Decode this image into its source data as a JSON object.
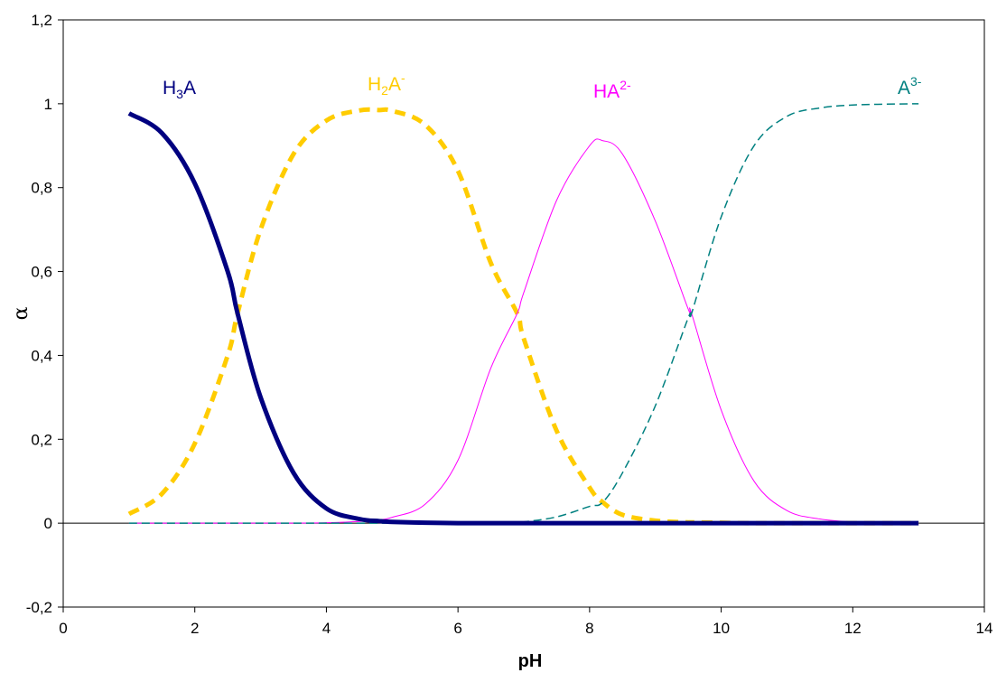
{
  "chart_data": {
    "type": "line",
    "xlabel": "pH",
    "ylabel": "α",
    "xlim": [
      0,
      14
    ],
    "ylim": [
      -0.2,
      1.2
    ],
    "x_ticks": [
      "0",
      "2",
      "4",
      "6",
      "8",
      "10",
      "12",
      "14"
    ],
    "y_ticks": [
      "-0,2",
      "0",
      "0,2",
      "0,4",
      "0,6",
      "0,8",
      "1",
      "1,2"
    ],
    "x": [
      1,
      1.5,
      2,
      2.5,
      2.65,
      3,
      3.5,
      4,
      4.5,
      4.8,
      5,
      5.5,
      6,
      6.5,
      6.9,
      7,
      7.5,
      8,
      8.2,
      8.5,
      9,
      9.5,
      9.55,
      10,
      10.5,
      11,
      11.5,
      12,
      12.5,
      13
    ],
    "series": [
      {
        "name": "H₃A",
        "label_parts": {
          "base": "H",
          "sub": "3",
          "tail": "A",
          "sup": ""
        },
        "color": "#000080",
        "style": "solid-thick",
        "values": [
          0.977,
          0.93,
          0.81,
          0.6,
          0.5,
          0.3,
          0.12,
          0.035,
          0.01,
          0.005,
          0.003,
          0.001,
          0,
          0,
          0,
          0,
          0,
          0,
          0,
          0,
          0,
          0,
          0,
          0,
          0,
          0,
          0,
          0,
          0,
          0
        ]
      },
      {
        "name": "H₂A⁻",
        "label_parts": {
          "base": "H",
          "sub": "2",
          "tail": "A",
          "sup": "-"
        },
        "color": "#FFCC00",
        "style": "dashed-thick",
        "values": [
          0.022,
          0.07,
          0.19,
          0.4,
          0.5,
          0.7,
          0.88,
          0.96,
          0.984,
          0.985,
          0.983,
          0.95,
          0.84,
          0.62,
          0.5,
          0.44,
          0.22,
          0.085,
          0.05,
          0.02,
          0.006,
          0.002,
          0.002,
          0.001,
          0,
          0,
          0,
          0,
          0,
          0
        ]
      },
      {
        "name": "HA²⁻",
        "label_parts": {
          "base": "",
          "sub": "",
          "tail": "HA",
          "sup": "2-"
        },
        "color": "#FF00FF",
        "style": "solid-thin",
        "values": [
          0,
          0,
          0,
          0,
          0,
          0,
          0,
          0.001,
          0.004,
          0.008,
          0.014,
          0.045,
          0.15,
          0.37,
          0.5,
          0.55,
          0.77,
          0.9,
          0.912,
          0.88,
          0.72,
          0.51,
          0.5,
          0.27,
          0.1,
          0.03,
          0.01,
          0.003,
          0.001,
          0
        ]
      },
      {
        "name": "A³⁻",
        "label_parts": {
          "base": "",
          "sub": "",
          "tail": "A",
          "sup": "3-"
        },
        "color": "#008080",
        "style": "dashed-thin",
        "values": [
          0,
          0,
          0,
          0,
          0,
          0,
          0,
          0,
          0,
          0,
          0,
          0,
          0,
          0.001,
          0.002,
          0.003,
          0.015,
          0.04,
          0.05,
          0.12,
          0.28,
          0.49,
          0.5,
          0.73,
          0.9,
          0.97,
          0.99,
          0.997,
          0.999,
          1
        ]
      }
    ],
    "grid": false,
    "legend": "none"
  }
}
